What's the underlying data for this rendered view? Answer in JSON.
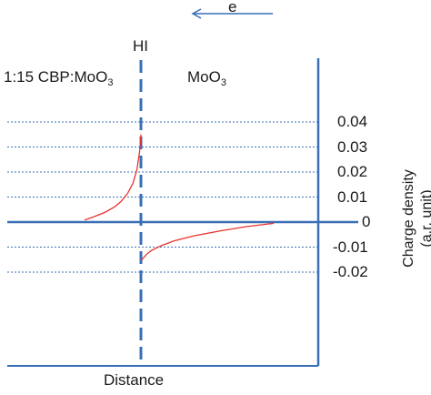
{
  "chart_data": {
    "type": "line",
    "title": "",
    "xlabel": "Distance",
    "ylabel_line1": "Charge density",
    "ylabel_line2": "(a.r. unit)",
    "ylim": [
      -0.025,
      0.045
    ],
    "yticks": [
      0.04,
      0.03,
      0.02,
      0.01,
      0,
      -0.01,
      -0.02
    ],
    "ytick_labels": [
      "0.04",
      "0.03",
      "0.02",
      "0.01",
      "0",
      "-0.01",
      "-0.02"
    ],
    "grid": "horizontal dotted",
    "region_left": {
      "prefix": "1:15 CBP:MoO",
      "sub": "3"
    },
    "region_right": {
      "prefix": "MoO",
      "sub": "3"
    },
    "interface_label": "HI",
    "electron_label": "e",
    "electron_direction": "left",
    "series": [
      {
        "x": [
          -0.85,
          -0.7,
          -0.55,
          -0.4,
          -0.3,
          -0.2,
          -0.12,
          -0.06,
          -0.02,
          0
        ],
        "values": [
          0.0008,
          0.0022,
          0.0038,
          0.006,
          0.0082,
          0.0115,
          0.0155,
          0.021,
          0.028,
          0.035
        ]
      },
      {
        "x": [
          0,
          0.03,
          0.08,
          0.15,
          0.3,
          0.5,
          0.8,
          1.2,
          1.6,
          2.0
        ],
        "values": [
          -0.0155,
          -0.0145,
          -0.013,
          -0.0115,
          -0.0095,
          -0.0075,
          -0.0055,
          -0.0035,
          -0.0018,
          -0.0005
        ]
      }
    ],
    "line_color": "#e8322b",
    "accent_color": "#3a6fb5"
  }
}
